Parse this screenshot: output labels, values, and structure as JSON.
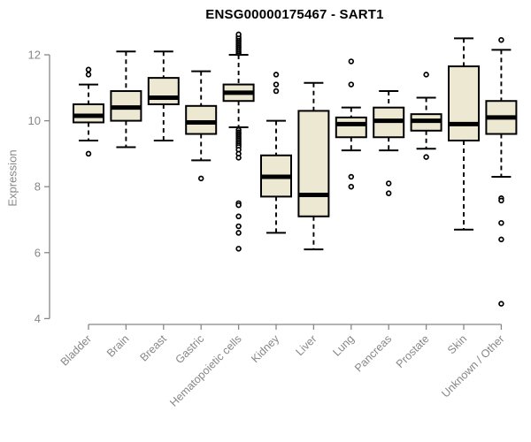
{
  "chart_data": {
    "type": "boxplot",
    "title": "ENSG00000175467 - SART1",
    "ylabel": "Expression",
    "xlabel": "",
    "yticks": [
      12,
      10,
      8,
      6,
      4
    ],
    "ylim": [
      3.8,
      12.75
    ],
    "grid": false,
    "legend": "none",
    "box_fill": "#EDE8D1",
    "box_stroke": "#000000",
    "axis_color": "#878787",
    "categories": [
      "Bladder",
      "Brain",
      "Breast",
      "Gastric",
      "Hematopoietic cells",
      "Kidney",
      "Liver",
      "Lung",
      "Pancreas",
      "Prostate",
      "Skin",
      "Unknown / Other"
    ],
    "series": [
      {
        "category": "Bladder",
        "whisker_low": 9.4,
        "q1": 9.95,
        "median": 10.15,
        "q3": 10.5,
        "whisker_high": 11.1,
        "outliers": [
          11.55,
          11.4,
          9.0
        ]
      },
      {
        "category": "Brain",
        "whisker_low": 9.2,
        "q1": 10.0,
        "median": 10.4,
        "q3": 10.9,
        "whisker_high": 12.1,
        "outliers": []
      },
      {
        "category": "Breast",
        "whisker_low": 9.4,
        "q1": 10.5,
        "median": 10.7,
        "q3": 11.3,
        "whisker_high": 12.1,
        "outliers": []
      },
      {
        "category": "Gastric",
        "whisker_low": 8.8,
        "q1": 9.6,
        "median": 9.95,
        "q3": 10.45,
        "whisker_high": 11.5,
        "outliers": [
          8.25
        ]
      },
      {
        "category": "Hematopoietic cells",
        "whisker_low": 9.8,
        "q1": 10.6,
        "median": 10.85,
        "q3": 11.1,
        "whisker_high": 12.0,
        "outliers": [
          12.05,
          12.1,
          12.15,
          12.2,
          12.25,
          12.3,
          12.35,
          12.4,
          12.45,
          12.5,
          12.55,
          12.62,
          9.72,
          9.65,
          9.6,
          9.55,
          9.5,
          9.45,
          9.4,
          9.35,
          9.3,
          9.25,
          9.2,
          9.12,
          9.0,
          8.88,
          7.5,
          7.44,
          7.1,
          6.8,
          6.6,
          6.12
        ]
      },
      {
        "category": "Kidney",
        "whisker_low": 6.6,
        "q1": 7.7,
        "median": 8.3,
        "q3": 8.95,
        "whisker_high": 10.0,
        "outliers": [
          11.4,
          11.1,
          10.9
        ]
      },
      {
        "category": "Liver",
        "whisker_low": 6.1,
        "q1": 7.1,
        "median": 7.75,
        "q3": 10.3,
        "whisker_high": 11.15,
        "outliers": []
      },
      {
        "category": "Lung",
        "whisker_low": 9.1,
        "q1": 9.5,
        "median": 9.9,
        "q3": 10.1,
        "whisker_high": 10.4,
        "outliers": [
          11.8,
          11.1,
          8.3,
          8.0
        ]
      },
      {
        "category": "Pancreas",
        "whisker_low": 9.1,
        "q1": 9.5,
        "median": 10.0,
        "q3": 10.4,
        "whisker_high": 10.9,
        "outliers": [
          8.1,
          7.8
        ]
      },
      {
        "category": "Prostate",
        "whisker_low": 9.15,
        "q1": 9.7,
        "median": 10.0,
        "q3": 10.2,
        "whisker_high": 10.7,
        "outliers": [
          11.4,
          8.9
        ]
      },
      {
        "category": "Skin",
        "whisker_low": 6.7,
        "q1": 9.4,
        "median": 9.9,
        "q3": 11.65,
        "whisker_high": 12.5,
        "outliers": []
      },
      {
        "category": "Unknown / Other",
        "whisker_low": 8.3,
        "q1": 9.6,
        "median": 10.1,
        "q3": 10.6,
        "whisker_high": 12.15,
        "outliers": [
          12.45,
          7.65,
          7.58,
          6.9,
          6.4,
          4.45
        ]
      }
    ]
  }
}
